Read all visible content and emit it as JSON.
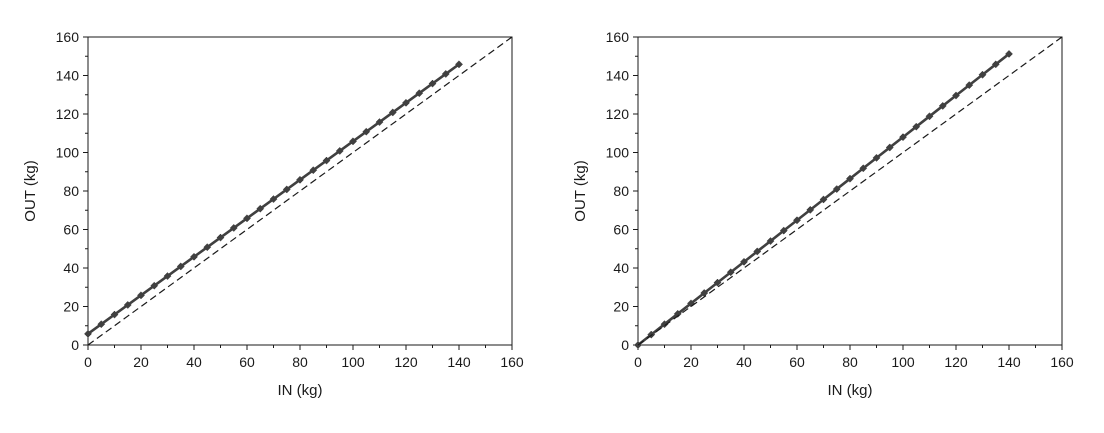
{
  "chart_data": [
    {
      "type": "line",
      "xlabel": "IN (kg)",
      "ylabel": "OUT (kg)",
      "xlim": [
        0,
        160
      ],
      "ylim": [
        0,
        160
      ],
      "xticks": [
        "0",
        "20",
        "40",
        "60",
        "80",
        "100",
        "120",
        "140",
        "160"
      ],
      "yticks": [
        "0",
        "20",
        "40",
        "60",
        "80",
        "100",
        "120",
        "140",
        "160"
      ],
      "grid": false,
      "legend": "none",
      "series": [
        {
          "style": "solid-with-diamond-markers",
          "color": "#404040",
          "x": [
            0,
            5,
            10,
            15,
            20,
            25,
            30,
            35,
            40,
            45,
            50,
            55,
            60,
            65,
            70,
            75,
            80,
            85,
            90,
            95,
            100,
            105,
            110,
            115,
            120,
            125,
            130,
            135,
            140
          ],
          "y": [
            5.8,
            10.8,
            15.8,
            20.8,
            25.8,
            30.8,
            35.8,
            40.8,
            45.8,
            50.8,
            55.8,
            60.8,
            65.8,
            70.8,
            75.8,
            80.8,
            85.8,
            90.8,
            95.8,
            100.8,
            105.8,
            110.8,
            115.8,
            120.8,
            125.8,
            130.8,
            135.8,
            140.8,
            145.8
          ]
        },
        {
          "style": "dashed-reference",
          "color": "#1a1a1a",
          "x": [
            0,
            160
          ],
          "y": [
            0,
            160
          ]
        }
      ]
    },
    {
      "type": "line",
      "xlabel": "IN (kg)",
      "ylabel": "OUT (kg)",
      "xlim": [
        0,
        160
      ],
      "ylim": [
        0,
        160
      ],
      "xticks": [
        "0",
        "20",
        "40",
        "60",
        "80",
        "100",
        "120",
        "140",
        "160"
      ],
      "yticks": [
        "0",
        "20",
        "40",
        "60",
        "80",
        "100",
        "120",
        "140",
        "160"
      ],
      "grid": false,
      "legend": "none",
      "series": [
        {
          "style": "solid-with-diamond-markers",
          "color": "#404040",
          "x": [
            0,
            5,
            10,
            15,
            20,
            25,
            30,
            35,
            40,
            45,
            50,
            55,
            60,
            65,
            70,
            75,
            80,
            85,
            90,
            95,
            100,
            105,
            110,
            115,
            120,
            125,
            130,
            135,
            140
          ],
          "y": [
            0,
            5.4,
            10.8,
            16.2,
            21.6,
            27.0,
            32.4,
            37.8,
            43.2,
            48.6,
            54.0,
            59.4,
            64.8,
            70.2,
            75.6,
            81.0,
            86.4,
            91.8,
            97.2,
            102.6,
            108.0,
            113.4,
            118.8,
            124.2,
            129.6,
            135.0,
            140.4,
            145.8,
            151.2
          ]
        },
        {
          "style": "dashed-reference",
          "color": "#1a1a1a",
          "x": [
            0,
            160
          ],
          "y": [
            0,
            160
          ]
        }
      ]
    }
  ]
}
